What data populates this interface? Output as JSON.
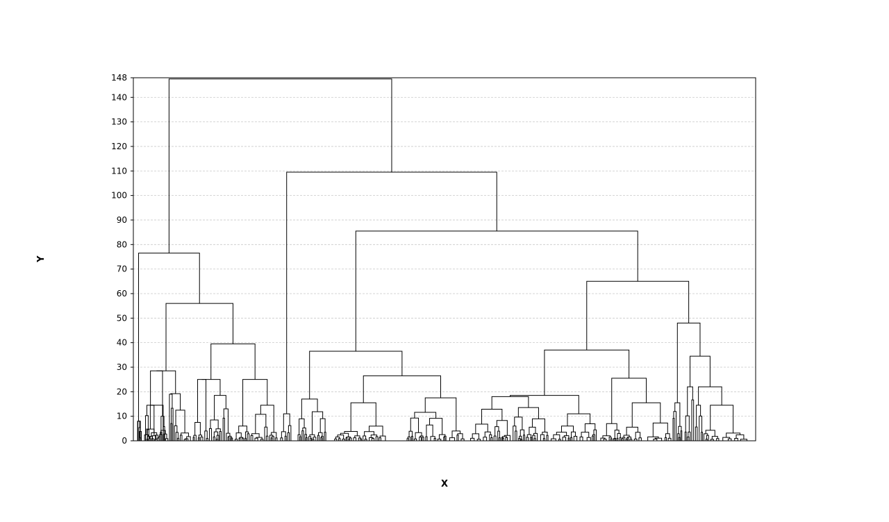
{
  "chart_data": {
    "type": "dendrogram",
    "title": "",
    "xlabel": "X",
    "ylabel": "Y",
    "ylim": [
      0,
      148
    ],
    "yticks": [
      0,
      10,
      20,
      30,
      40,
      50,
      60,
      70,
      80,
      90,
      100,
      110,
      120,
      130,
      140,
      148
    ],
    "grid": true,
    "major_merges": [
      {
        "height": 147.5,
        "children": [
          "left-cluster",
          "right-super-cluster"
        ]
      },
      {
        "height": 76.5,
        "children": [
          "left-small",
          "left-main"
        ]
      },
      {
        "height": 56.0,
        "children": [
          "left-a",
          "left-b"
        ]
      },
      {
        "height": 39.5,
        "children": [
          "left-b1",
          "left-b2"
        ]
      },
      {
        "height": 109.5,
        "children": [
          "outlier",
          "right-cluster"
        ]
      },
      {
        "height": 85.5,
        "children": [
          "mid-cluster",
          "far-right-cluster"
        ]
      },
      {
        "height": 36.5,
        "children": [
          "mid-a",
          "mid-b"
        ]
      },
      {
        "height": 65.0,
        "children": [
          "right-a",
          "right-b"
        ]
      },
      {
        "height": 37.0,
        "children": [
          "right-a1",
          "right-a2"
        ]
      },
      {
        "height": 48.0,
        "children": [
          "right-b1",
          "right-b2"
        ]
      }
    ],
    "leaf_count_approx": 255
  }
}
